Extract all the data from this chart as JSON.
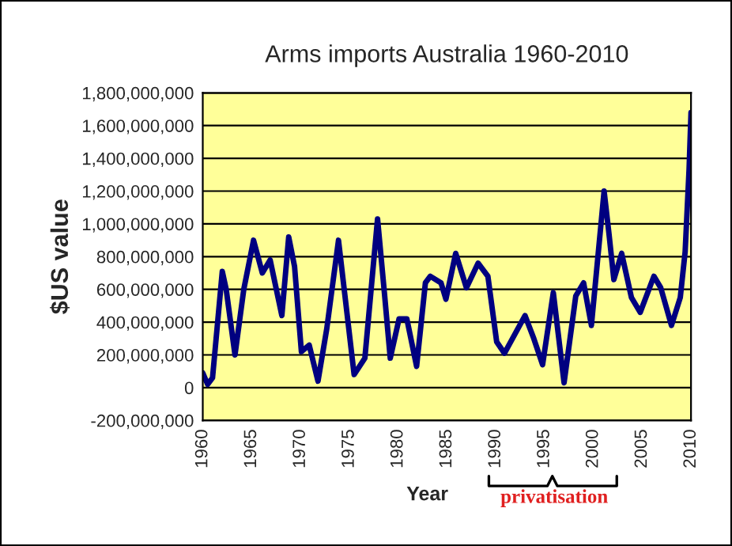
{
  "chart_data": {
    "type": "line",
    "title": "Arms imports Australia 1960-2010",
    "xlabel": "Year",
    "ylabel": "$US value",
    "annotations": [
      "privatisation"
    ],
    "x": [
      1960,
      1960.5,
      1961,
      1962,
      1962.4,
      1963.3,
      1964.2,
      1965.2,
      1966.1,
      1966.9,
      1968.1,
      1968.8,
      1969.4,
      1970.1,
      1970.9,
      1971.8,
      1972.7,
      1973.9,
      1975.5,
      1976.6,
      1977.9,
      1978.6,
      1979.2,
      1980.1,
      1980.9,
      1981.9,
      1982.8,
      1983.3,
      1984.4,
      1984.9,
      1985.9,
      1987,
      1988.2,
      1989.2,
      1990.1,
      1990.9,
      1993,
      1993.9,
      1994.8,
      1995.9,
      1997,
      1998.2,
      1999,
      1999.8,
      2001.1,
      2001.6,
      2002.1,
      2002.9,
      2003.9,
      2004.8,
      2006.2,
      2006.9,
      2008,
      2008.9,
      2009.4,
      2009.8,
      2010
    ],
    "series": [
      {
        "color": "#000080",
        "values": [
          90000000,
          20000000,
          60000000,
          710000000,
          600000000,
          200000000,
          600000000,
          900000000,
          700000000,
          780000000,
          440000000,
          920000000,
          740000000,
          220000000,
          260000000,
          40000000,
          360000000,
          900000000,
          80000000,
          180000000,
          1030000000,
          580000000,
          180000000,
          420000000,
          420000000,
          130000000,
          640000000,
          680000000,
          640000000,
          540000000,
          820000000,
          610000000,
          760000000,
          680000000,
          280000000,
          210000000,
          440000000,
          300000000,
          140000000,
          580000000,
          30000000,
          560000000,
          640000000,
          380000000,
          1200000000,
          940000000,
          660000000,
          820000000,
          550000000,
          460000000,
          680000000,
          610000000,
          380000000,
          550000000,
          830000000,
          1330000000,
          1680000000
        ]
      }
    ],
    "xlim": [
      1960,
      2010
    ],
    "xticks": [
      1960,
      1965,
      1970,
      1975,
      1980,
      1985,
      1990,
      1995,
      2000,
      2005,
      2010
    ],
    "ylim": [
      -200000000,
      1800000000
    ],
    "yticks": [
      {
        "value": -200000000,
        "label": "-200,000,000"
      },
      0,
      {
        "value": 200000000,
        "label": "200,000,000"
      },
      {
        "value": 400000000,
        "label": "400,000,000"
      },
      {
        "value": 600000000,
        "label": "600,000,000"
      },
      {
        "value": 800000000,
        "label": "800,000,000"
      },
      {
        "value": 1000000000,
        "label": "1,000,000,000"
      },
      {
        "value": 1200000000,
        "label": "1,200,000,000"
      },
      {
        "value": 1400000000,
        "label": "1,400,000,000"
      },
      {
        "value": 1600000000,
        "label": "1,600,000,000"
      },
      {
        "value": 1800000000,
        "label": "1,800,000,000"
      }
    ],
    "grid": "y",
    "marker": "none",
    "line_style": "solid"
  }
}
